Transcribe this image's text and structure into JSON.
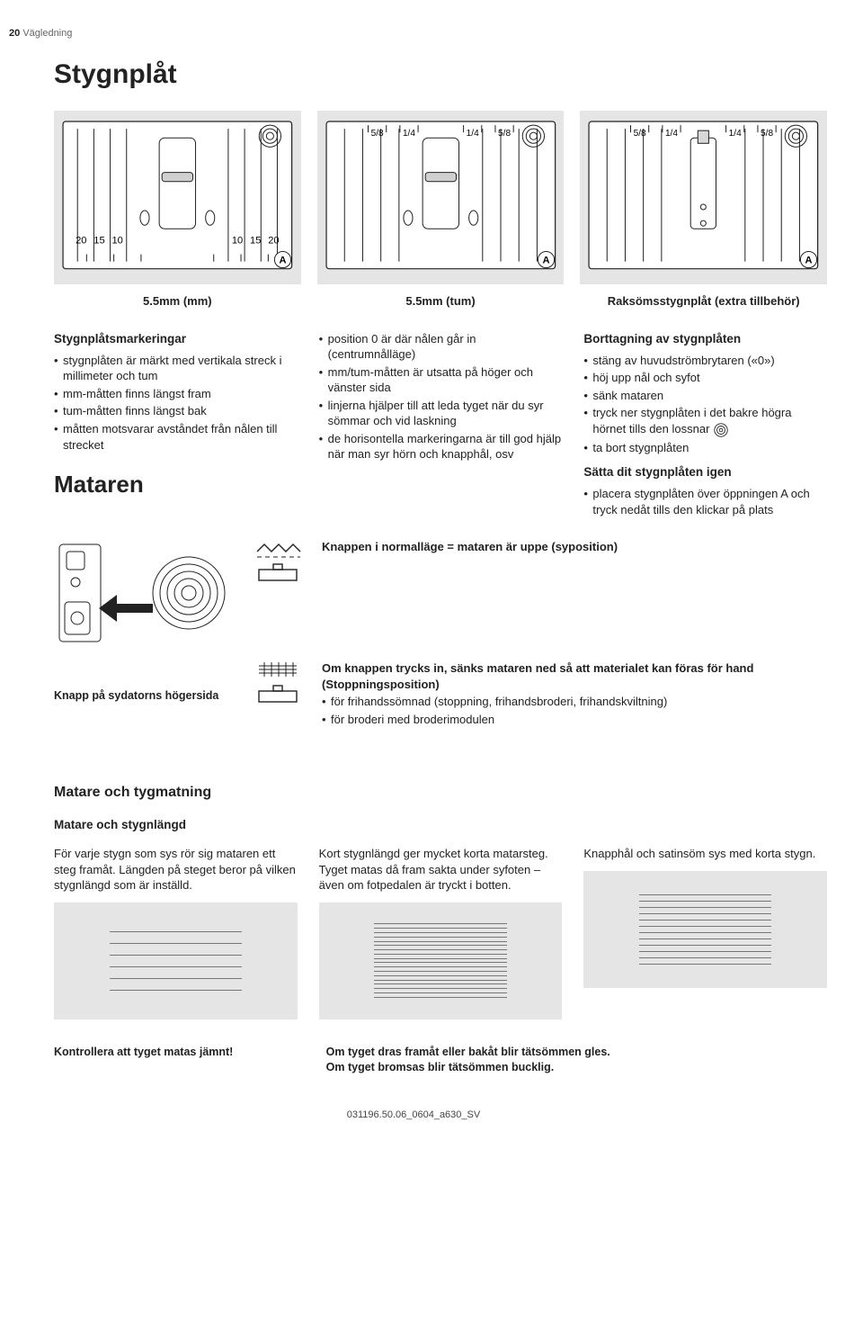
{
  "header": {
    "page_number": "20",
    "section": "Vägledning"
  },
  "h1": "Stygnplåt",
  "plates": {
    "plate1_caption": "5.5mm (mm)",
    "plate2_caption": "5.5mm (tum)",
    "plate3_caption": "Raksömsstygnplåt (extra tillbehör)",
    "mm_labels_left": [
      "20",
      "15",
      "10"
    ],
    "mm_labels_right": [
      "10",
      "15",
      "20"
    ],
    "inch_labels": [
      "5/8",
      "1/4",
      "1/4",
      "5/8"
    ],
    "corner_label": "A",
    "colors": {
      "bg": "#e5e5e5",
      "line": "#222",
      "white": "#ffffff"
    }
  },
  "col1": {
    "title": "Stygnplåtsmarkeringar",
    "items": [
      "stygnplåten är märkt med vertikala streck i millimeter och tum",
      "mm-måtten finns längst fram",
      "tum-måtten finns längst bak",
      "måtten motsvarar avståndet från nålen till strecket"
    ],
    "mataren": "Mataren"
  },
  "col2": {
    "items": [
      "position 0 är där nålen går in (centrumnålläge)",
      "mm/tum-måtten är utsatta på höger och vänster sida",
      "linjerna hjälper till att leda tyget när du syr sömmar och vid laskning",
      "de horisontella markeringarna är till god hjälp när man syr hörn och knapphål, osv"
    ]
  },
  "col3a": {
    "title": "Borttagning av stygnplåten",
    "items": [
      "stäng av huvudströmbrytaren («0»)",
      "höj upp nål och syfot",
      "sänk mataren",
      "tryck ner stygnplåten i det bakre högra hörnet tills den lossnar",
      "ta bort stygnplåten"
    ]
  },
  "col3b": {
    "title": "Sätta dit stygnplåten igen",
    "items": [
      "placera stygnplåten över öppningen A och tryck nedåt tills den klickar på plats"
    ]
  },
  "feedrow1": {
    "text": "Knappen i normalläge = mataren är uppe (syposition)"
  },
  "feedrow2": {
    "knapp_caption": "Knapp på sydatorns högersida",
    "bold": "Om knappen trycks in, sänks mataren ned så att materialet kan föras för hand (Stoppningsposition)",
    "items": [
      "för frihandssömnad (stoppning, frihandsbroderi, frihandskviltning)",
      "för broderi med broderimodulen"
    ]
  },
  "matare": {
    "heading": "Matare och tygmatning",
    "sub_title": "Matare och stygnlängd",
    "c1": "För varje stygn som sys rör sig mataren ett steg framåt. Längden på steget beror på vilken stygnlängd som är inställd.",
    "c2": "Kort stygnlängd ger mycket korta matarsteg. Tyget matas då fram sakta under syfoten – även om fotpedalen är tryckt i botten.",
    "c3": "Knapphål och satinsöm sys med korta stygn.",
    "stripe_counts": [
      6,
      18,
      12
    ]
  },
  "bottom": {
    "b1": "Kontrollera att tyget matas jämnt!",
    "b2a": "Om tyget dras framåt eller bakåt blir tätsömmen gles.",
    "b2b": "Om tyget bromsas blir tätsömmen bucklig."
  },
  "footer_code": "031196.50.06_0604_a630_SV"
}
